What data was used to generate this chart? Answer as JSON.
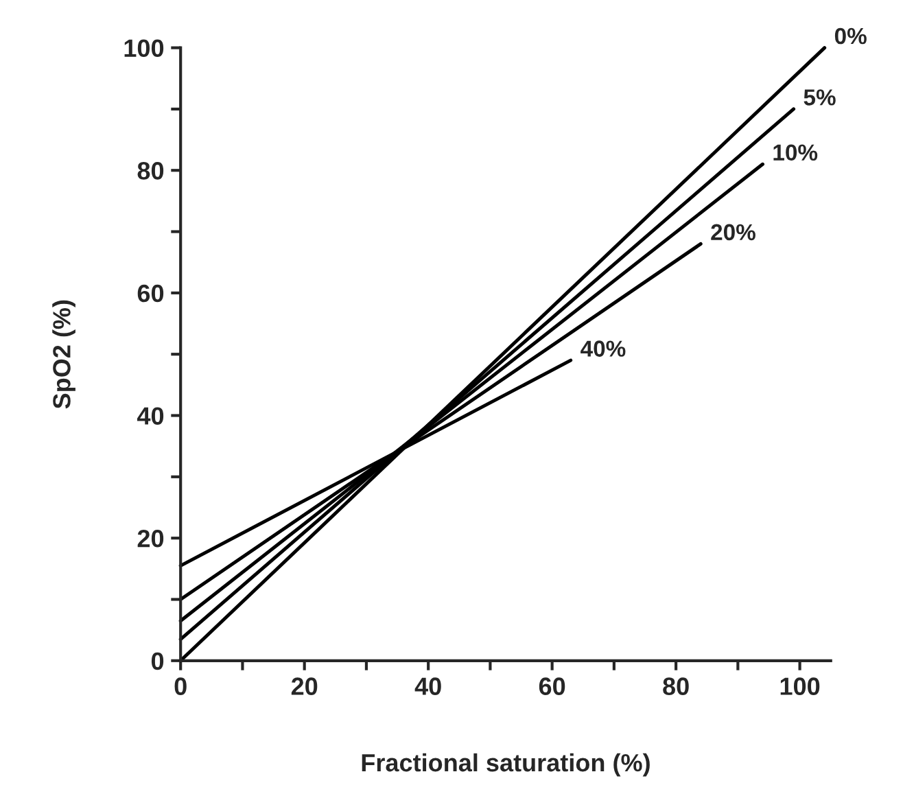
{
  "chart_data": {
    "type": "line",
    "xlabel": "Fractional saturation (%)",
    "ylabel": "SpO2 (%)",
    "xlim": [
      0,
      105
    ],
    "ylim": [
      0,
      100
    ],
    "xticks": [
      0,
      {
        "value": 10,
        "label": null
      },
      20,
      {
        "value": 30,
        "label": null
      },
      40,
      {
        "value": 50,
        "label": null
      },
      60,
      {
        "value": 70,
        "label": null
      },
      80,
      {
        "value": 90,
        "label": null
      },
      100
    ],
    "yticks": [
      0,
      {
        "value": 10,
        "label": null
      },
      20,
      {
        "value": 30,
        "label": null
      },
      40,
      {
        "value": 50,
        "label": null
      },
      60,
      {
        "value": 70,
        "label": null
      },
      80,
      {
        "value": 90,
        "label": null
      },
      100
    ],
    "series": [
      {
        "color": "#000000",
        "x": [
          0,
          104
        ],
        "values": [
          0,
          100
        ]
      },
      {
        "color": "#000000",
        "x": [
          0,
          99
        ],
        "values": [
          3.5,
          90
        ]
      },
      {
        "color": "#000000",
        "x": [
          0,
          94
        ],
        "values": [
          6.5,
          81
        ]
      },
      {
        "color": "#000000",
        "x": [
          0,
          84
        ],
        "values": [
          10,
          68
        ]
      },
      {
        "color": "#000000",
        "x": [
          0,
          63
        ],
        "values": [
          15.5,
          49
        ]
      }
    ],
    "annotations": [
      {
        "text": "0%",
        "x": 104,
        "y": 100
      },
      {
        "text": "5%",
        "x": 99,
        "y": 90
      },
      {
        "text": "10%",
        "x": 94,
        "y": 81
      },
      {
        "text": "20%",
        "x": 84,
        "y": 68
      },
      {
        "text": "40%",
        "x": 63,
        "y": 49
      }
    ],
    "grid": false,
    "legend": false,
    "marker": "none",
    "line_style": "solid"
  }
}
